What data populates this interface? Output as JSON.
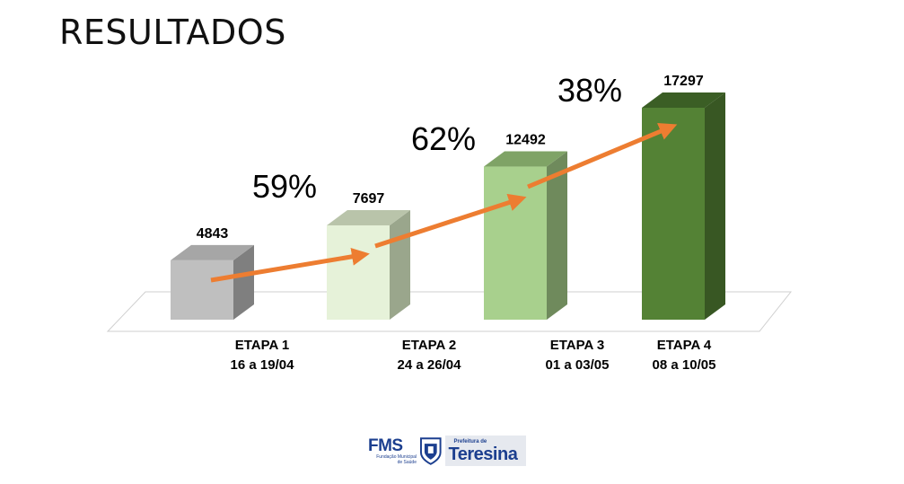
{
  "page": {
    "title": "RESULTADOS"
  },
  "chart_data": {
    "type": "bar",
    "categories": [
      {
        "line1": "ETAPA 1",
        "line2": "16 a 19/04"
      },
      {
        "line1": "ETAPA 2",
        "line2": "24 a 26/04"
      },
      {
        "line1": "ETAPA 3",
        "line2": "01 a 03/05"
      },
      {
        "line1": "ETAPA 4",
        "line2": "08 a 10/05"
      }
    ],
    "values": [
      4843,
      7697,
      12492,
      17297
    ],
    "value_labels": [
      "4843",
      "7697",
      "12492",
      "17297"
    ],
    "growth_labels": [
      "59%",
      "62%",
      "38%"
    ],
    "bar_colors": [
      {
        "front": "#bfbfbf",
        "side": "#7f7f7f",
        "top": "#a6a6a6"
      },
      {
        "front": "#e6f2d9",
        "side": "#9aa68c",
        "top": "#b9c4aa"
      },
      {
        "front": "#a8d08d",
        "side": "#6f8a5c",
        "top": "#7fa366"
      },
      {
        "front": "#548235",
        "side": "#385723",
        "top": "#3b5e25"
      }
    ],
    "arrow_color": "#ed7d31",
    "3d": true,
    "grid": false
  },
  "logo": {
    "fms": "FMS",
    "fms_sub_1": "Fundação Municipal",
    "fms_sub_2": "de Saúde",
    "prefeitura": "Prefeitura de",
    "city": "Teresina"
  }
}
